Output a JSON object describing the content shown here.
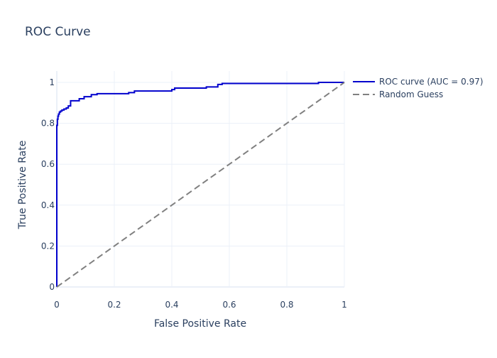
{
  "chart_data": {
    "type": "line",
    "title": "ROC Curve",
    "xlabel": "False Positive Rate",
    "ylabel": "True Positive Rate",
    "xlim": [
      0,
      1
    ],
    "ylim": [
      0,
      1
    ],
    "xticks": [
      0,
      0.2,
      0.4,
      0.6,
      0.8,
      1
    ],
    "yticks": [
      0,
      0.2,
      0.4,
      0.6,
      0.8,
      1
    ],
    "xtick_labels": [
      "0",
      "0.2",
      "0.4",
      "0.6",
      "0.8",
      "1"
    ],
    "ytick_labels": [
      "0",
      "0.2",
      "0.4",
      "0.6",
      "0.8",
      "1"
    ],
    "grid": true,
    "legend_position": "top-right, outside plot",
    "series": [
      {
        "name": "ROC curve (AUC = 0.97)",
        "color": "#0000cd",
        "dash": "solid",
        "shape": "step",
        "x": [
          0,
          0,
          0.002,
          0.002,
          0.004,
          0.004,
          0.006,
          0.006,
          0.009,
          0.009,
          0.013,
          0.013,
          0.018,
          0.018,
          0.025,
          0.025,
          0.033,
          0.033,
          0.04,
          0.04,
          0.048,
          0.048,
          0.078,
          0.078,
          0.095,
          0.095,
          0.12,
          0.12,
          0.14,
          0.14,
          0.25,
          0.25,
          0.27,
          0.27,
          0.4,
          0.4,
          0.41,
          0.41,
          0.52,
          0.52,
          0.56,
          0.56,
          0.575,
          0.575,
          0.91,
          0.91,
          1.0
        ],
        "y": [
          0,
          0.79,
          0.79,
          0.82,
          0.82,
          0.835,
          0.835,
          0.845,
          0.845,
          0.855,
          0.855,
          0.86,
          0.86,
          0.865,
          0.865,
          0.87,
          0.87,
          0.875,
          0.875,
          0.885,
          0.885,
          0.91,
          0.91,
          0.92,
          0.92,
          0.93,
          0.93,
          0.94,
          0.94,
          0.945,
          0.945,
          0.95,
          0.95,
          0.958,
          0.958,
          0.965,
          0.965,
          0.972,
          0.972,
          0.978,
          0.978,
          0.99,
          0.99,
          0.995,
          0.995,
          1.0,
          1.0
        ]
      },
      {
        "name": "Random Guess",
        "color": "#808080",
        "dash": "dashed",
        "shape": "linear",
        "x": [
          0,
          1
        ],
        "y": [
          0,
          1
        ]
      }
    ]
  }
}
